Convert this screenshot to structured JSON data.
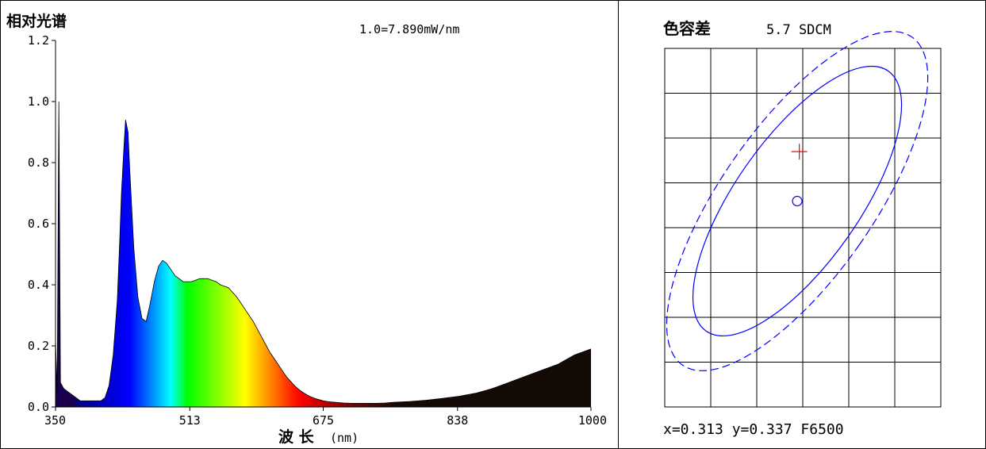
{
  "chart_data": [
    {
      "type": "area",
      "title": "相对光谱",
      "scale_note": "1.0=7.890mW/nm",
      "xlabel": "波 长",
      "xlabel_unit": "(nm)",
      "xlim": [
        350,
        1000
      ],
      "ylim": [
        0,
        1.2
      ],
      "x_ticks": [
        "350",
        "513",
        "675",
        "838",
        "1000"
      ],
      "y_ticks": [
        "0.0",
        "0.2",
        "0.4",
        "0.6",
        "0.8",
        "1.0",
        "1.2"
      ],
      "fill": "spectral color gradient by wavelength",
      "grid": false,
      "series": [
        {
          "x": [
            350,
            352,
            354,
            356,
            360,
            365,
            370,
            375,
            380,
            385,
            390,
            395,
            400,
            405,
            410,
            415,
            420,
            425,
            428,
            430,
            433,
            435,
            438,
            440,
            445,
            450,
            455,
            460,
            465,
            470,
            475,
            480,
            485,
            490,
            495,
            500,
            505,
            510,
            515,
            520,
            525,
            530,
            535,
            540,
            545,
            550,
            555,
            560,
            565,
            570,
            575,
            580,
            585,
            590,
            595,
            600,
            605,
            610,
            615,
            620,
            625,
            630,
            635,
            640,
            645,
            650,
            655,
            660,
            665,
            670,
            675,
            680,
            685,
            690,
            695,
            700,
            710,
            720,
            730,
            740,
            750,
            760,
            780,
            800,
            820,
            840,
            860,
            880,
            900,
            920,
            940,
            960,
            980,
            1000
          ],
          "values": [
            0.22,
            0.05,
            1.0,
            0.08,
            0.06,
            0.05,
            0.04,
            0.03,
            0.02,
            0.02,
            0.02,
            0.02,
            0.02,
            0.02,
            0.03,
            0.07,
            0.17,
            0.35,
            0.55,
            0.7,
            0.85,
            0.94,
            0.9,
            0.78,
            0.52,
            0.36,
            0.29,
            0.28,
            0.34,
            0.41,
            0.46,
            0.48,
            0.47,
            0.45,
            0.43,
            0.42,
            0.41,
            0.41,
            0.41,
            0.415,
            0.42,
            0.42,
            0.42,
            0.415,
            0.41,
            0.4,
            0.395,
            0.39,
            0.375,
            0.36,
            0.34,
            0.32,
            0.3,
            0.28,
            0.255,
            0.23,
            0.205,
            0.18,
            0.16,
            0.14,
            0.12,
            0.1,
            0.085,
            0.07,
            0.058,
            0.048,
            0.04,
            0.033,
            0.028,
            0.024,
            0.02,
            0.018,
            0.016,
            0.015,
            0.014,
            0.013,
            0.012,
            0.012,
            0.012,
            0.012,
            0.013,
            0.015,
            0.018,
            0.022,
            0.028,
            0.035,
            0.045,
            0.06,
            0.08,
            0.1,
            0.12,
            0.14,
            0.17,
            0.19
          ]
        }
      ]
    },
    {
      "type": "scatter",
      "title": "色容差",
      "title_value": "5.7 SDCM",
      "readout": "x=0.313 y=0.337 F6500",
      "grid": true,
      "grid_rows": 8,
      "grid_cols": 6,
      "ellipses": [
        {
          "style": "solid",
          "color": "#0000ff",
          "cx": 0.3127,
          "cy": 0.329,
          "rx": 0.009,
          "ry": 0.023,
          "angle": 35
        },
        {
          "style": "dashed",
          "color": "#0000ff",
          "cx": 0.3127,
          "cy": 0.329,
          "rx": 0.011,
          "ry": 0.029,
          "angle": 35
        }
      ],
      "points": [
        {
          "marker": "circle",
          "color": "#0000ff",
          "x": 0.3127,
          "y": 0.329
        },
        {
          "marker": "cross",
          "color": "#ff0000",
          "x": 0.313,
          "y": 0.337
        }
      ]
    }
  ]
}
